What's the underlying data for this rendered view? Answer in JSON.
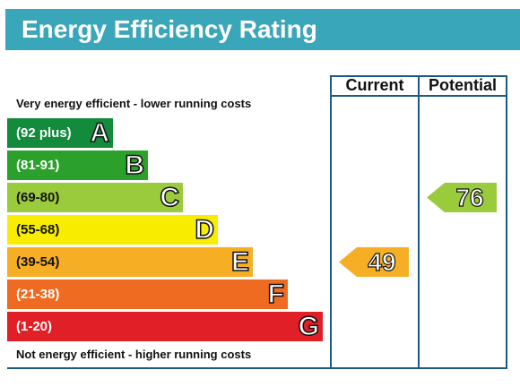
{
  "header": {
    "title": "Energy Efficiency Rating"
  },
  "columns": {
    "current": "Current",
    "potential": "Potential"
  },
  "notes": {
    "top": "Very energy efficient - lower running costs",
    "bottom": "Not energy efficient - higher running costs"
  },
  "bands": [
    {
      "range": "(92 plus)",
      "letter": "A",
      "color": "#138a3c"
    },
    {
      "range": "(81-91)",
      "letter": "B",
      "color": "#2ba02b"
    },
    {
      "range": "(69-80)",
      "letter": "C",
      "color": "#9acb3c"
    },
    {
      "range": "(55-68)",
      "letter": "D",
      "color": "#f8ed00"
    },
    {
      "range": "(39-54)",
      "letter": "E",
      "color": "#f6ae25"
    },
    {
      "range": "(21-38)",
      "letter": "F",
      "color": "#ee6b21"
    },
    {
      "range": "(1-20)",
      "letter": "G",
      "color": "#e01f26"
    }
  ],
  "ratings": {
    "current": {
      "value": "49",
      "band": "E",
      "color": "#f6ae25"
    },
    "potential": {
      "value": "76",
      "band": "C",
      "color": "#9acb3c"
    }
  }
}
